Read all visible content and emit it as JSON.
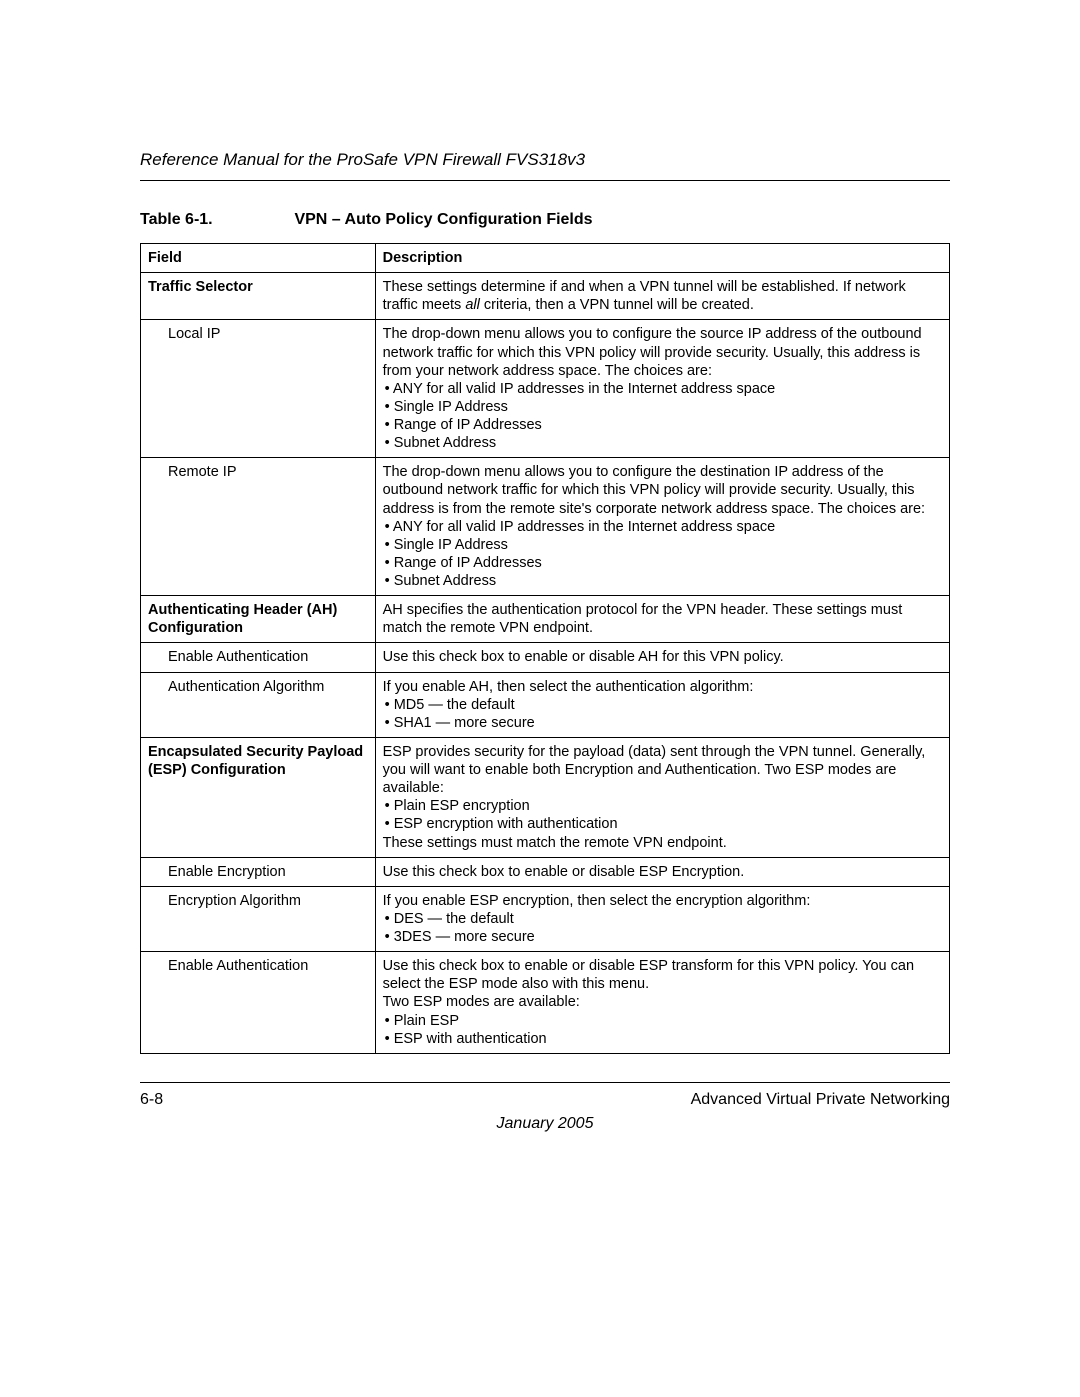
{
  "header": {
    "running_title": "Reference Manual for the ProSafe VPN Firewall FVS318v3"
  },
  "table": {
    "label": "Table 6-1.",
    "title": "VPN – Auto Policy Configuration Fields",
    "columns": {
      "field": "Field",
      "description": "Description"
    },
    "rows": [
      {
        "field_bold": true,
        "field": "Traffic Selector",
        "desc_lines": [
          {
            "t": "plain",
            "v": "These settings determine if and when a VPN tunnel will be established. If network traffic meets "
          },
          {
            "t": "ital",
            "v": "all"
          },
          {
            "t": "plain",
            "v": " criteria, then a VPN tunnel will be created."
          }
        ]
      },
      {
        "field_bold": false,
        "field_indent": true,
        "field": "Local IP",
        "desc_blocks": [
          {
            "t": "p",
            "v": "The drop-down menu allows you to configure the source IP address of the outbound network traffic for which this VPN policy will provide security. Usually, this address is from your network address space. The choices are:"
          },
          {
            "t": "b",
            "v": "ANY for all valid IP addresses in the Internet address space"
          },
          {
            "t": "b",
            "v": "Single IP Address"
          },
          {
            "t": "b",
            "v": "Range of IP Addresses"
          },
          {
            "t": "b",
            "v": "Subnet Address"
          }
        ]
      },
      {
        "field_bold": false,
        "field_indent": true,
        "field": "Remote IP",
        "desc_blocks": [
          {
            "t": "p",
            "v": "The drop-down menu allows you to configure the destination IP address of the outbound network traffic for which this VPN policy will provide security. Usually, this address is from the remote site's corporate network address space. The choices are:"
          },
          {
            "t": "b",
            "v": "ANY for all valid IP addresses in the Internet address space"
          },
          {
            "t": "b",
            "v": "Single IP Address"
          },
          {
            "t": "b",
            "v": "Range of IP Addresses"
          },
          {
            "t": "b",
            "v": "Subnet Address"
          }
        ]
      },
      {
        "field_bold": true,
        "field": "Authenticating Header (AH) Configuration",
        "desc_blocks": [
          {
            "t": "p",
            "v": "AH specifies the authentication protocol for the VPN header. These settings must match the remote VPN endpoint."
          }
        ]
      },
      {
        "field_bold": false,
        "field_indent": true,
        "field": "Enable Authentication",
        "desc_blocks": [
          {
            "t": "p",
            "v": "Use this check box to enable or disable AH for this VPN policy."
          }
        ]
      },
      {
        "field_bold": false,
        "field_indent": true,
        "field": "Authentication Algorithm",
        "desc_blocks": [
          {
            "t": "p",
            "v": "If you enable AH, then select the authentication algorithm:"
          },
          {
            "t": "b",
            "v": "MD5 — the default"
          },
          {
            "t": "b",
            "v": "SHA1 — more secure"
          }
        ]
      },
      {
        "field_bold": true,
        "field": "Encapsulated Security Payload (ESP) Configuration",
        "desc_blocks": [
          {
            "t": "p",
            "v": "ESP provides security for the payload (data) sent through the VPN tunnel. Generally, you will want to enable both Encryption and Authentication. Two ESP modes are available:"
          },
          {
            "t": "b",
            "v": "Plain ESP encryption"
          },
          {
            "t": "b",
            "v": "ESP encryption with authentication"
          },
          {
            "t": "p",
            "v": "These settings must match the remote VPN endpoint."
          }
        ]
      },
      {
        "field_bold": false,
        "field_indent": true,
        "field": "Enable Encryption",
        "desc_blocks": [
          {
            "t": "p",
            "v": "Use this check box to enable or disable ESP Encryption."
          }
        ]
      },
      {
        "field_bold": false,
        "field_indent": true,
        "field": "Encryption Algorithm",
        "desc_blocks": [
          {
            "t": "p",
            "v": "If you enable ESP encryption, then select the encryption algorithm:"
          },
          {
            "t": "b",
            "v": "DES — the default"
          },
          {
            "t": "b",
            "v": "3DES — more secure"
          }
        ]
      },
      {
        "field_bold": false,
        "field_indent": true,
        "field": "Enable Authentication",
        "desc_blocks": [
          {
            "t": "p",
            "v": "Use this check box to enable or disable ESP transform for this VPN policy. You can select the ESP mode also with this menu."
          },
          {
            "t": "p",
            "v": "Two ESP modes are available:"
          },
          {
            "t": "b",
            "v": "Plain ESP"
          },
          {
            "t": "b",
            "v": "ESP with authentication"
          }
        ]
      }
    ]
  },
  "footer": {
    "page_num": "6-8",
    "section": "Advanced Virtual Private Networking",
    "date": "January 2005"
  }
}
